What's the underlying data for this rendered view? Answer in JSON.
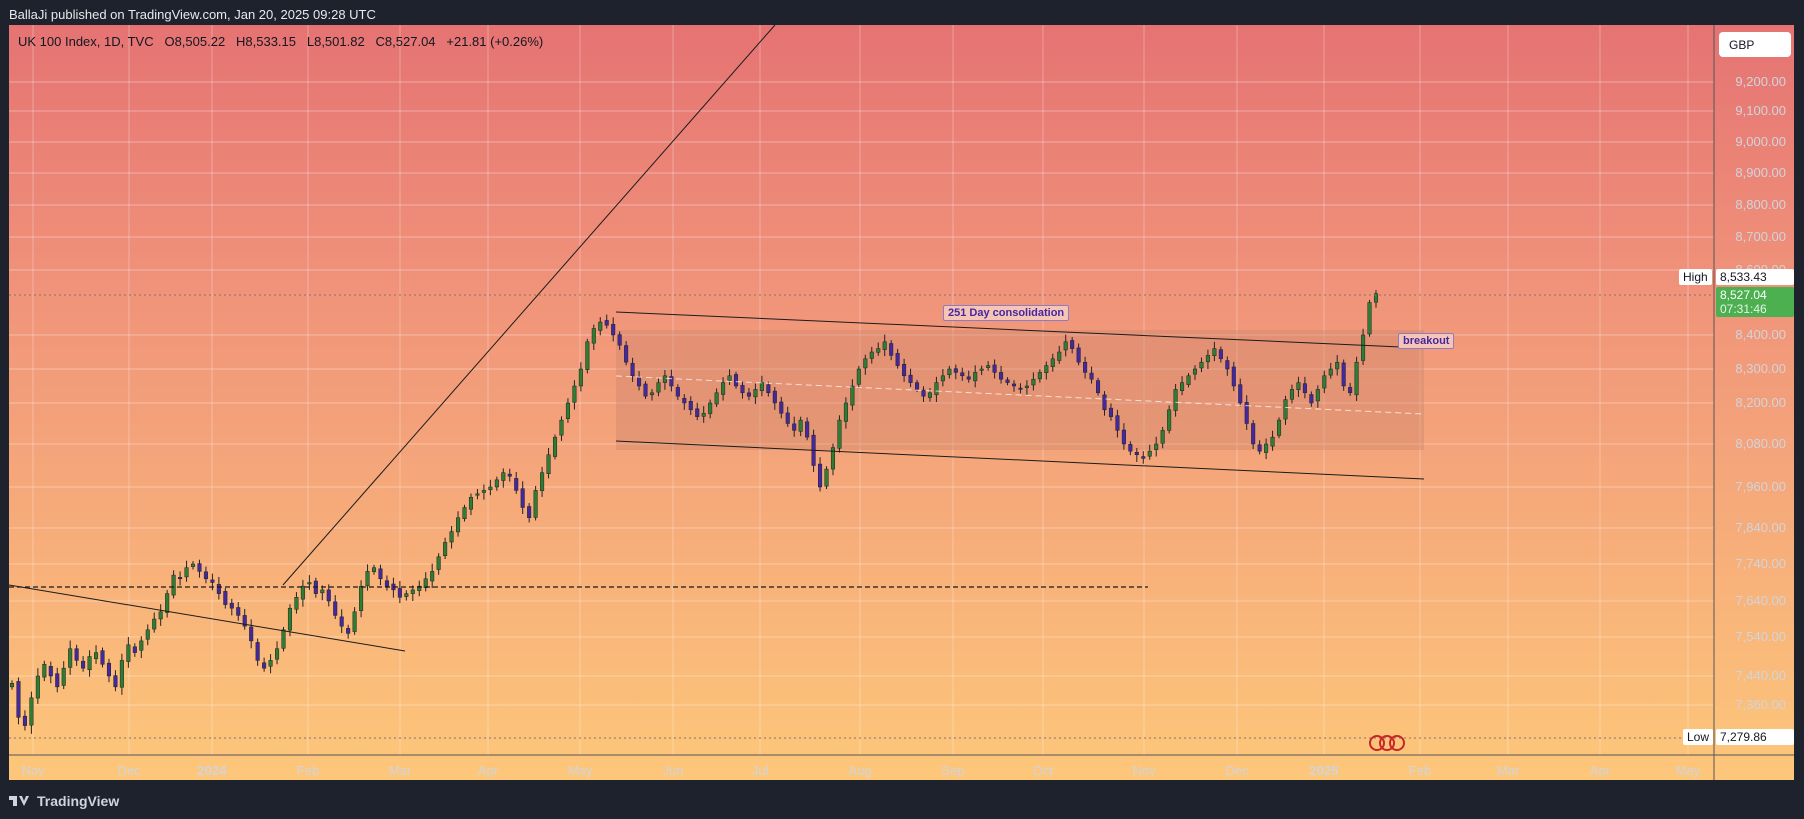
{
  "header": {
    "publisher": "BallaJi published on TradingView.com, Jan 20, 2025 09:28 UTC"
  },
  "legend": {
    "symbol": "UK 100 Index, 1D, TVC",
    "open": "O8,505.22",
    "high": "H8,533.15",
    "low": "L8,501.82",
    "close": "C8,527.04",
    "change": "+21.81 (+0.26%)"
  },
  "currency": "GBP",
  "price_axis": {
    "high_label": "High",
    "high_value": "8,533.43",
    "last_value": "8,527.04",
    "countdown": "07:31:46",
    "low_label": "Low",
    "low_value": "7,279.86"
  },
  "footer": {
    "brand": "TradingView"
  },
  "annotations": {
    "consolidation": "251 Day consolidation",
    "breakout": "breakout"
  },
  "colors": {
    "up": "#2e7d32",
    "down": "#4527a0",
    "line": "#1b1b1b",
    "last_price": "#4caf50"
  },
  "icons": [
    "tradingview-logo-icon",
    "events-icon"
  ],
  "chart_data": {
    "type": "candlestick",
    "symbol": "UK 100 Index",
    "interval": "1D",
    "y_ticks": [
      "9,200.00",
      "9,100.00",
      "9,000.00",
      "8,900.00",
      "8,800.00",
      "8,700.00",
      "8,600.00",
      "8,400.00",
      "8,300.00",
      "8,200.00",
      "8,080.00",
      "7,960.00",
      "7,840.00",
      "7,740.00",
      "7,640.00",
      "7,540.00",
      "7,440.00",
      "7,360.00"
    ],
    "x_ticks": [
      "Nov",
      "Dec",
      "2024",
      "Feb",
      "Mar",
      "Apr",
      "May",
      "Jun",
      "Jul",
      "Aug",
      "Sep",
      "Oct",
      "Nov",
      "Dec",
      "2025",
      "Feb",
      "Mar",
      "Apr",
      "May"
    ],
    "ohlc_last": {
      "open": 8505.22,
      "high": 8533.15,
      "low": 8501.82,
      "close": 8527.04
    },
    "high": 8533.43,
    "low": 7279.86,
    "closes": [
      7420,
      7330,
      7310,
      7380,
      7440,
      7470,
      7440,
      7410,
      7460,
      7510,
      7480,
      7460,
      7490,
      7500,
      7470,
      7440,
      7410,
      7480,
      7520,
      7500,
      7530,
      7560,
      7590,
      7610,
      7660,
      7710,
      7700,
      7730,
      7740,
      7720,
      7700,
      7690,
      7660,
      7630,
      7620,
      7600,
      7570,
      7530,
      7480,
      7460,
      7480,
      7510,
      7560,
      7620,
      7650,
      7680,
      7690,
      7660,
      7670,
      7640,
      7600,
      7570,
      7550,
      7610,
      7680,
      7720,
      7730,
      7700,
      7680,
      7670,
      7650,
      7660,
      7670,
      7680,
      7700,
      7720,
      7760,
      7800,
      7830,
      7870,
      7900,
      7930,
      7940,
      7950,
      7960,
      7980,
      8000,
      7990,
      7950,
      7900,
      7870,
      7950,
      8000,
      8050,
      8100,
      8150,
      8200,
      8250,
      8300,
      8380,
      8420,
      8440,
      8430,
      8400,
      8370,
      8320,
      8280,
      8250,
      8220,
      8230,
      8260,
      8280,
      8250,
      8220,
      8200,
      8180,
      8160,
      8170,
      8200,
      8230,
      8260,
      8280,
      8250,
      8230,
      8220,
      8240,
      8260,
      8230,
      8200,
      8170,
      8140,
      8120,
      8150,
      8100,
      8020,
      7960,
      8010,
      8070,
      8150,
      8200,
      8250,
      8300,
      8330,
      8350,
      8360,
      8380,
      8340,
      8310,
      8280,
      8260,
      8240,
      8220,
      8230,
      8260,
      8280,
      8300,
      8290,
      8280,
      8270,
      8290,
      8300,
      8310,
      8290,
      8270,
      8260,
      8250,
      8240,
      8250,
      8270,
      8290,
      8310,
      8330,
      8350,
      8380,
      8360,
      8320,
      8290,
      8270,
      8230,
      8180,
      8160,
      8120,
      8080,
      8060,
      8050,
      8040,
      8060,
      8080,
      8120,
      8180,
      8240,
      8260,
      8280,
      8300,
      8320,
      8340,
      8360,
      8330,
      8300,
      8250,
      8200,
      8140,
      8080,
      8060,
      8080,
      8100,
      8150,
      8210,
      8240,
      8260,
      8230,
      8200,
      8240,
      8280,
      8300,
      8320,
      8250,
      8230,
      8320,
      8400,
      8500,
      8527.04
    ]
  }
}
